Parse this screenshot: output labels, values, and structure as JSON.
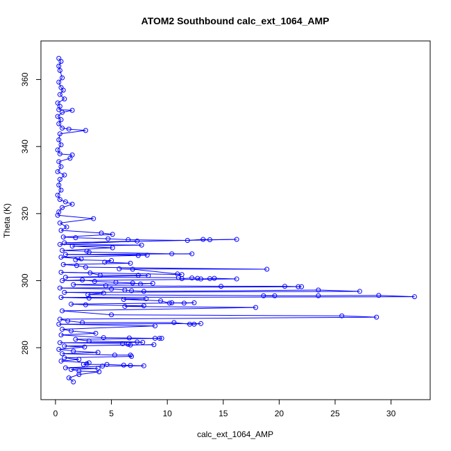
{
  "chart_data": {
    "type": "scatter",
    "title": "ATOM2 Southbound calc_ext_1064_AMP",
    "xlabel": "calc_ext_1064_AMP",
    "ylabel": "Theta (K)",
    "xlim": [
      -1.3,
      33.5
    ],
    "ylim": [
      264.5,
      371.5
    ],
    "x_ticks": [
      0,
      5,
      10,
      15,
      20,
      25,
      30
    ],
    "y_ticks": [
      280,
      300,
      320,
      340,
      360
    ],
    "grid": false,
    "line_color": "#0000ff",
    "marker": "open-circle",
    "series": [
      {
        "points": [
          [
            0.3,
            366.3
          ],
          [
            0.5,
            365.4
          ],
          [
            0.3,
            364.0
          ],
          [
            0.4,
            362.7
          ],
          [
            0.6,
            360.5
          ],
          [
            0.3,
            359.2
          ],
          [
            0.5,
            357.6
          ],
          [
            0.7,
            356.8
          ],
          [
            0.4,
            355.5
          ],
          [
            0.8,
            354.2
          ],
          [
            0.2,
            353.0
          ],
          [
            0.4,
            352.0
          ],
          [
            0.3,
            351.0
          ],
          [
            1.5,
            350.8
          ],
          [
            0.6,
            350.2
          ],
          [
            0.2,
            349.0
          ],
          [
            0.5,
            348.0
          ],
          [
            0.3,
            346.8
          ],
          [
            0.6,
            345.5
          ],
          [
            1.2,
            345.2
          ],
          [
            2.7,
            344.8
          ],
          [
            0.4,
            343.8
          ],
          [
            0.3,
            342.0
          ],
          [
            0.5,
            340.5
          ],
          [
            0.2,
            339.0
          ],
          [
            0.4,
            337.8
          ],
          [
            1.5,
            337.5
          ],
          [
            1.3,
            336.5
          ],
          [
            0.3,
            335.5
          ],
          [
            0.5,
            334.0
          ],
          [
            0.2,
            332.5
          ],
          [
            0.8,
            331.5
          ],
          [
            0.4,
            330.2
          ],
          [
            0.3,
            328.5
          ],
          [
            0.5,
            327.0
          ],
          [
            0.2,
            325.5
          ],
          [
            0.4,
            324.2
          ],
          [
            0.9,
            323.5
          ],
          [
            1.5,
            322.8
          ],
          [
            0.6,
            321.8
          ],
          [
            0.3,
            320.5
          ],
          [
            0.2,
            319.5
          ],
          [
            3.4,
            318.5
          ],
          [
            0.4,
            317.2
          ],
          [
            1.0,
            316.0
          ],
          [
            0.5,
            315.0
          ],
          [
            4.1,
            314.2
          ],
          [
            5.1,
            313.8
          ],
          [
            0.7,
            313.0
          ],
          [
            1.8,
            312.8
          ],
          [
            4.7,
            312.5
          ],
          [
            6.5,
            312.2
          ],
          [
            11.8,
            312.0
          ],
          [
            13.2,
            312.3
          ],
          [
            13.8,
            312.2
          ],
          [
            16.2,
            312.3
          ],
          [
            0.8,
            311.3
          ],
          [
            7.3,
            311.8
          ],
          [
            0.4,
            310.8
          ],
          [
            7.7,
            310.6
          ],
          [
            1.5,
            310.3
          ],
          [
            5.1,
            309.8
          ],
          [
            0.6,
            309.0
          ],
          [
            2.8,
            308.8
          ],
          [
            3.0,
            308.5
          ],
          [
            10.4,
            308.0
          ],
          [
            12.2,
            308.0
          ],
          [
            0.9,
            307.8
          ],
          [
            8.2,
            307.6
          ],
          [
            7.4,
            307.5
          ],
          [
            0.5,
            307.0
          ],
          [
            2.3,
            306.5
          ],
          [
            1.8,
            306.2
          ],
          [
            5.0,
            306.0
          ],
          [
            4.4,
            305.5
          ],
          [
            6.7,
            305.2
          ],
          [
            0.7,
            304.8
          ],
          [
            1.9,
            304.5
          ],
          [
            2.7,
            304.0
          ],
          [
            18.9,
            303.4
          ],
          [
            5.7,
            303.5
          ],
          [
            6.9,
            303.4
          ],
          [
            10.9,
            302.0
          ],
          [
            11.3,
            301.8
          ],
          [
            0.5,
            302.5
          ],
          [
            3.1,
            302.3
          ],
          [
            4.0,
            301.6
          ],
          [
            7.4,
            301.6
          ],
          [
            8.3,
            301.5
          ],
          [
            0.9,
            301.0
          ],
          [
            11.0,
            300.9
          ],
          [
            11.3,
            300.6
          ],
          [
            12.2,
            300.8
          ],
          [
            12.7,
            300.7
          ],
          [
            13.0,
            300.5
          ],
          [
            13.8,
            300.6
          ],
          [
            14.2,
            300.7
          ],
          [
            16.2,
            300.5
          ],
          [
            0.6,
            300.0
          ],
          [
            2.4,
            300.2
          ],
          [
            3.5,
            299.8
          ],
          [
            5.4,
            299.5
          ],
          [
            6.9,
            299.3
          ],
          [
            7.6,
            299.0
          ],
          [
            8.7,
            299.2
          ],
          [
            1.6,
            298.8
          ],
          [
            4.5,
            298.5
          ],
          [
            14.8,
            298.3
          ],
          [
            20.5,
            298.3
          ],
          [
            21.7,
            298.2
          ],
          [
            22.0,
            298.2
          ],
          [
            0.4,
            297.8
          ],
          [
            5.0,
            297.5
          ],
          [
            6.2,
            297.2
          ],
          [
            6.8,
            297.0
          ],
          [
            7.9,
            296.8
          ],
          [
            23.5,
            297.2
          ],
          [
            27.2,
            296.8
          ],
          [
            0.8,
            296.5
          ],
          [
            4.3,
            296.3
          ],
          [
            2.9,
            295.8
          ],
          [
            19.6,
            295.5
          ],
          [
            18.6,
            295.5
          ],
          [
            23.5,
            295.5
          ],
          [
            28.9,
            295.6
          ],
          [
            32.1,
            295.2
          ],
          [
            0.5,
            295.0
          ],
          [
            3.0,
            294.8
          ],
          [
            8.1,
            294.6
          ],
          [
            6.1,
            294.4
          ],
          [
            9.4,
            294.0
          ],
          [
            10.2,
            293.3
          ],
          [
            10.4,
            293.4
          ],
          [
            11.5,
            293.3
          ],
          [
            12.4,
            293.4
          ],
          [
            1.4,
            293.0
          ],
          [
            2.7,
            292.8
          ],
          [
            7.9,
            292.5
          ],
          [
            6.2,
            292.3
          ],
          [
            17.9,
            292.0
          ],
          [
            0.6,
            291.0
          ],
          [
            5.0,
            289.8
          ],
          [
            25.6,
            289.5
          ],
          [
            28.7,
            289.1
          ],
          [
            0.4,
            288.5
          ],
          [
            1.1,
            288.0
          ],
          [
            2.4,
            287.5
          ],
          [
            10.6,
            287.5
          ],
          [
            12.0,
            287.0
          ],
          [
            12.4,
            287.0
          ],
          [
            13.0,
            287.2
          ],
          [
            0.3,
            287.0
          ],
          [
            8.9,
            286.5
          ],
          [
            0.6,
            285.5
          ],
          [
            1.4,
            285.0
          ],
          [
            3.6,
            284.3
          ],
          [
            0.5,
            283.8
          ],
          [
            4.3,
            283.0
          ],
          [
            6.6,
            282.9
          ],
          [
            8.9,
            282.8
          ],
          [
            9.3,
            282.8
          ],
          [
            9.5,
            282.8
          ],
          [
            1.8,
            282.5
          ],
          [
            3.0,
            282.0
          ],
          [
            7.3,
            281.7
          ],
          [
            7.8,
            281.6
          ],
          [
            0.4,
            281.5
          ],
          [
            6.0,
            281.2
          ],
          [
            6.5,
            281.0
          ],
          [
            6.7,
            280.8
          ],
          [
            8.8,
            280.9
          ],
          [
            0.8,
            280.5
          ],
          [
            2.6,
            280.2
          ],
          [
            0.3,
            279.5
          ],
          [
            1.6,
            279.0
          ],
          [
            3.8,
            278.6
          ],
          [
            0.6,
            278.2
          ],
          [
            5.3,
            277.8
          ],
          [
            6.7,
            277.8
          ],
          [
            6.8,
            277.4
          ],
          [
            0.8,
            277.0
          ],
          [
            2.1,
            276.5
          ],
          [
            0.5,
            276.0
          ],
          [
            3.0,
            275.5
          ],
          [
            2.8,
            275.2
          ],
          [
            2.5,
            275.0
          ],
          [
            4.6,
            275.0
          ],
          [
            6.1,
            274.8
          ],
          [
            6.7,
            274.7
          ],
          [
            7.9,
            274.6
          ],
          [
            4.2,
            274.5
          ],
          [
            0.9,
            274.0
          ],
          [
            3.8,
            273.8
          ],
          [
            1.4,
            273.5
          ],
          [
            2.1,
            273.0
          ],
          [
            3.9,
            272.8
          ],
          [
            2.1,
            272.0
          ],
          [
            1.2,
            271.0
          ],
          [
            1.6,
            269.8
          ]
        ]
      }
    ]
  }
}
